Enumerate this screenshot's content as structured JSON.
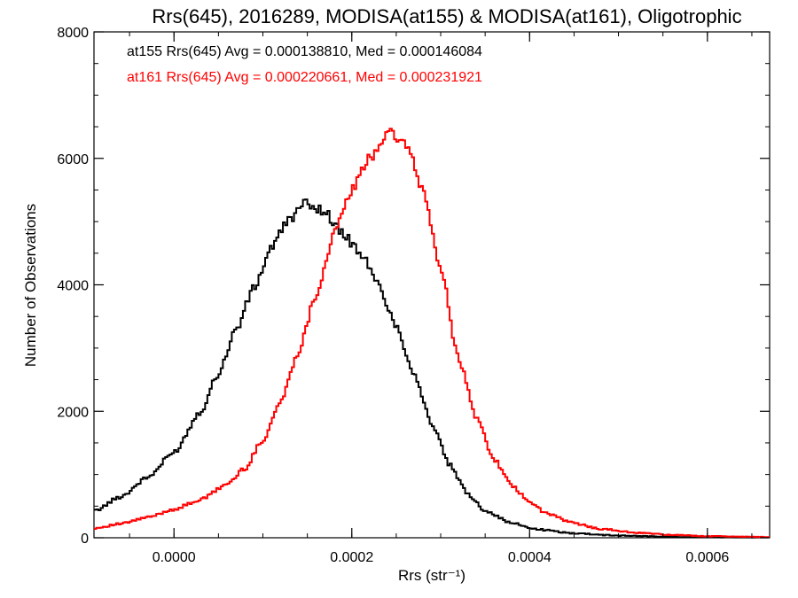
{
  "chart_data": {
    "type": "line",
    "title": "Rrs(645), 2016289, MODISA(at155) & MODISA(at161), Oligotrophic",
    "xlabel": "Rrs (str⁻¹)",
    "ylabel": "Number of Observations",
    "xlim": [
      -9e-05,
      0.00067
    ],
    "ylim": [
      0,
      8000
    ],
    "x_ticks": [
      "0.0000",
      "0.0002",
      "0.0004",
      "0.0006"
    ],
    "y_ticks": [
      "0",
      "2000",
      "4000",
      "6000",
      "8000"
    ],
    "grid": false,
    "legend": "top-left",
    "series": [
      {
        "name": "at155 Rrs(645) Avg = 0.000138810, Med = 0.000146084",
        "color": "#000000",
        "x": [
          -9e-05,
          -6e-05,
          -3e-05,
          0.0,
          3e-05,
          5e-05,
          7e-05,
          9e-05,
          0.00011,
          0.00013,
          0.00015,
          0.00017,
          0.00019,
          0.00021,
          0.00023,
          0.00025,
          0.00027,
          0.00029,
          0.00031,
          0.00033,
          0.00035,
          0.00038,
          0.00041,
          0.00045,
          0.0005,
          0.00056,
          0.00062,
          0.00067
        ],
        "y": [
          420,
          650,
          950,
          1350,
          2000,
          2600,
          3300,
          3950,
          4600,
          5050,
          5300,
          5150,
          4800,
          4500,
          4000,
          3350,
          2600,
          1800,
          1150,
          700,
          430,
          230,
          130,
          70,
          35,
          15,
          8,
          5
        ]
      },
      {
        "name": "at161 Rrs(645) Avg = 0.000220661, Med = 0.000231921",
        "color": "#ff0000",
        "x": [
          -9e-05,
          -6e-05,
          -3e-05,
          0.0,
          3e-05,
          6e-05,
          8e-05,
          0.0001,
          0.00012,
          0.00014,
          0.00016,
          0.00018,
          0.0002,
          0.00022,
          0.00024,
          0.00026,
          0.00028,
          0.0003,
          0.00032,
          0.00034,
          0.00036,
          0.00038,
          0.0004,
          0.00042,
          0.00045,
          0.00048,
          0.00052,
          0.00056,
          0.0006,
          0.00067
        ],
        "y": [
          150,
          220,
          320,
          450,
          600,
          850,
          1100,
          1550,
          2150,
          2950,
          3850,
          4800,
          5500,
          6000,
          6400,
          6250,
          5500,
          4250,
          2850,
          1900,
          1250,
          820,
          560,
          380,
          230,
          140,
          80,
          45,
          25,
          12
        ]
      }
    ]
  }
}
